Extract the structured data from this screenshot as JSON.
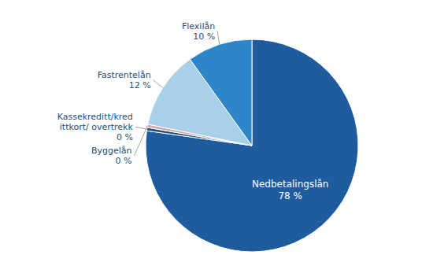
{
  "chart_data": {
    "type": "pie",
    "categories": [
      "Nedbetalingslån",
      "Kassekreditt/kred\nittkort/ overtrekk",
      "Byggelån",
      "Fastrentelån",
      "Flexilån"
    ],
    "values": [
      78,
      0.5,
      0.5,
      12,
      10
    ],
    "value_labels": [
      "78 %",
      "0 %",
      "0 %",
      "12 %",
      "10 %"
    ],
    "colors": [
      "#1F5C9E",
      "#1A4F8A",
      "#D8A9A9",
      "#A8D0E8",
      "#2E86C8"
    ]
  }
}
